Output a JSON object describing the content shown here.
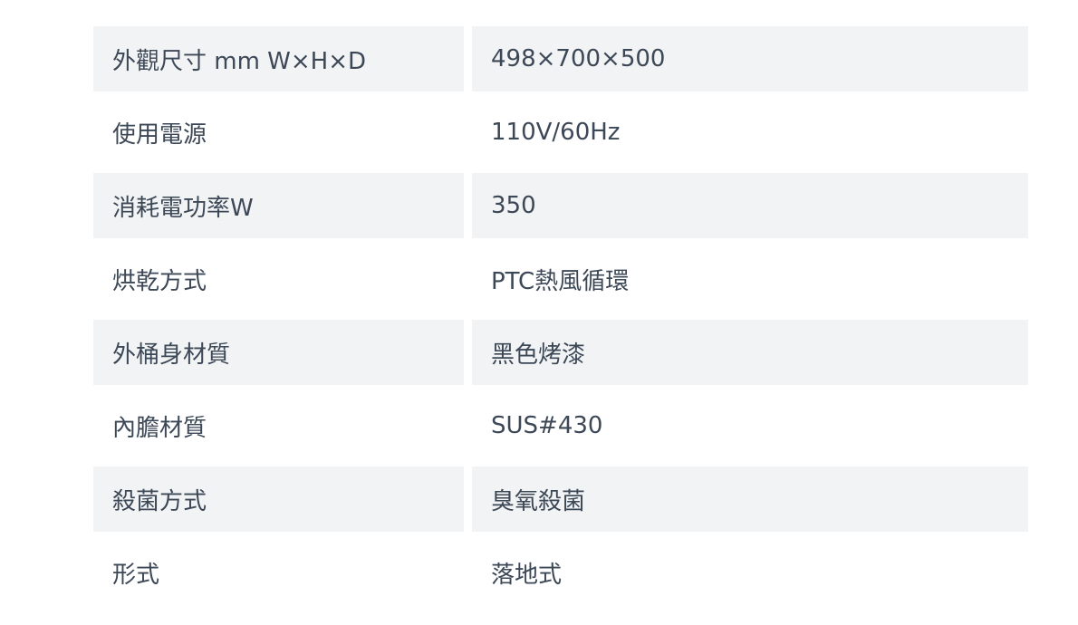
{
  "specs": [
    {
      "label": "外觀尺寸 mm W×H×D",
      "value": "498×700×500"
    },
    {
      "label": "使用電源",
      "value": "110V/60Hz"
    },
    {
      "label": "消耗電功率W",
      "value": "350"
    },
    {
      "label": "烘乾方式",
      "value": "PTC熱風循環"
    },
    {
      "label": "外桶身材質",
      "value": "黑色烤漆"
    },
    {
      "label": "內膽材質",
      "value": "SUS#430"
    },
    {
      "label": "殺菌方式",
      "value": "臭氧殺菌"
    },
    {
      "label": "形式",
      "value": "落地式"
    }
  ],
  "colors": {
    "text": "#3d4857",
    "row_shade": "#f2f3f5"
  }
}
